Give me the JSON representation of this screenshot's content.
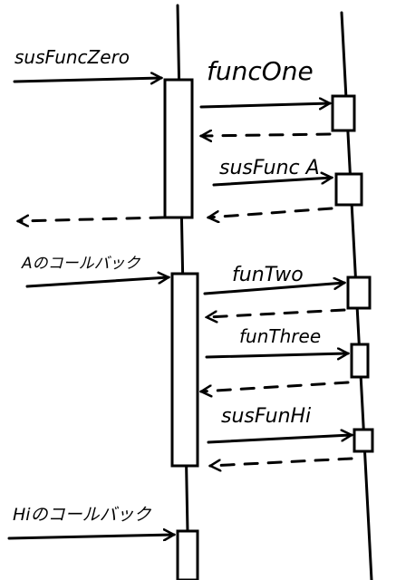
{
  "diagram": {
    "messages": [
      {
        "label": "susFuncZero"
      },
      {
        "label": "funcOne"
      },
      {
        "label": "susFunc A"
      },
      {
        "label": "Aのコールバック"
      },
      {
        "label": "funTwo"
      },
      {
        "label": "funThree"
      },
      {
        "label": "susFunHi"
      },
      {
        "label": "Hiのコールバック"
      }
    ]
  }
}
